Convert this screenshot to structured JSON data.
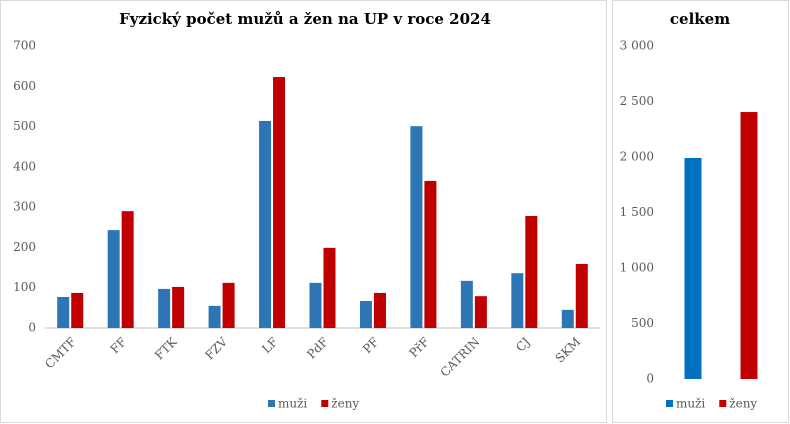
{
  "chart_data": [
    {
      "type": "bar",
      "title": "Fyzický počet mužů a žen na UP v roce 2024",
      "categories": [
        "CMTF",
        "FF",
        "FTK",
        "FZV",
        "LF",
        "PdF",
        "PF",
        "PřF",
        "CATRIN",
        "CJ",
        "SKM"
      ],
      "series": [
        {
          "name": "muži",
          "color": "#2e75b6",
          "values": [
            77,
            243,
            97,
            55,
            514,
            112,
            67,
            501,
            117,
            136,
            45
          ]
        },
        {
          "name": "ženy",
          "color": "#c00000",
          "values": [
            87,
            290,
            102,
            112,
            623,
            199,
            87,
            365,
            79,
            278,
            159
          ]
        }
      ],
      "ylim": [
        0,
        700
      ],
      "yticks": [
        0,
        100,
        200,
        300,
        400,
        500,
        600,
        700
      ],
      "grid": false,
      "legend": "bottom"
    },
    {
      "type": "bar",
      "title": "celkem",
      "categories": [
        null
      ],
      "series": [
        {
          "name": "muži",
          "color": "#0070c0",
          "values": [
            1991
          ]
        },
        {
          "name": "ženy",
          "color": "#c00000",
          "values": [
            2405
          ]
        }
      ],
      "ylim": [
        0,
        3000
      ],
      "yticks": [
        0,
        {
          "value": 500,
          "label": "500"
        },
        {
          "value": 1000,
          "label": "1 000"
        },
        {
          "value": 1500,
          "label": "1 500"
        },
        {
          "value": 2000,
          "label": "2 000"
        },
        {
          "value": 2500,
          "label": "2 500"
        },
        {
          "value": 3000,
          "label": "3 000"
        }
      ],
      "grid": false,
      "legend": "bottom"
    }
  ]
}
